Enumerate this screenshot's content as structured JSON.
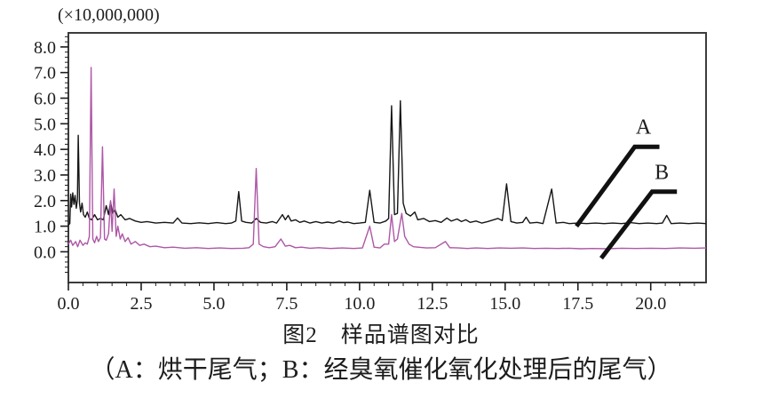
{
  "figure": {
    "caption_line1": "图2　样品谱图对比",
    "caption_line2": "（A：烘干尾气；B：经臭氧催化氧化处理后的尾气）"
  },
  "chart_data": {
    "type": "line",
    "title": "图2 样品谱图对比",
    "subtitle": "（A：烘干尾气；B：经臭氧催化氧化处理后的尾气）",
    "y_scale_label": "(×10,000,000)",
    "xlabel": "",
    "ylabel": "",
    "xlim": [
      0,
      21.9
    ],
    "ylim": [
      -1.2,
      8.55
    ],
    "x_major_ticks": [
      0,
      2.5,
      5,
      7.5,
      10,
      12.5,
      15,
      17.5,
      20
    ],
    "x_tick_labels": [
      "0.0",
      "2.5",
      "5.0",
      "7.5",
      "10.0",
      "12.5",
      "15.0",
      "17.5",
      "20.0"
    ],
    "x_minor_step": 0.5,
    "y_major_ticks": [
      0,
      1,
      2,
      3,
      4,
      5,
      6,
      7,
      8
    ],
    "y_tick_labels": [
      "0.0",
      "1.0",
      "2.0",
      "3.0",
      "4.0",
      "5.0",
      "6.0",
      "7.0",
      "8.0"
    ],
    "y_minor_step": 0.2,
    "grid": false,
    "legend_position": "none",
    "frame_color": "#3c3c3c",
    "series": [
      {
        "name": "A",
        "color": "#161616",
        "baseline": 1.1,
        "points": [
          [
            0.0,
            1.05
          ],
          [
            0.05,
            1.1
          ],
          [
            0.08,
            2.25
          ],
          [
            0.11,
            1.75
          ],
          [
            0.15,
            2.3
          ],
          [
            0.19,
            1.85
          ],
          [
            0.23,
            2.2
          ],
          [
            0.27,
            1.7
          ],
          [
            0.31,
            2.05
          ],
          [
            0.34,
            4.55
          ],
          [
            0.38,
            1.9
          ],
          [
            0.42,
            1.55
          ],
          [
            0.47,
            1.9
          ],
          [
            0.52,
            1.45
          ],
          [
            0.58,
            1.35
          ],
          [
            0.65,
            1.55
          ],
          [
            0.72,
            1.3
          ],
          [
            0.8,
            1.25
          ],
          [
            0.9,
            1.45
          ],
          [
            1.0,
            1.25
          ],
          [
            1.1,
            1.3
          ],
          [
            1.2,
            1.25
          ],
          [
            1.3,
            1.8
          ],
          [
            1.38,
            1.45
          ],
          [
            1.45,
            1.95
          ],
          [
            1.52,
            1.5
          ],
          [
            1.6,
            1.65
          ],
          [
            1.7,
            1.35
          ],
          [
            1.8,
            1.45
          ],
          [
            1.95,
            1.25
          ],
          [
            2.1,
            1.3
          ],
          [
            2.3,
            1.2
          ],
          [
            2.5,
            1.15
          ],
          [
            2.7,
            1.18
          ],
          [
            3.0,
            1.12
          ],
          [
            3.3,
            1.15
          ],
          [
            3.6,
            1.12
          ],
          [
            3.75,
            1.32
          ],
          [
            3.9,
            1.12
          ],
          [
            4.2,
            1.1
          ],
          [
            4.5,
            1.13
          ],
          [
            4.8,
            1.1
          ],
          [
            5.1,
            1.14
          ],
          [
            5.4,
            1.1
          ],
          [
            5.6,
            1.12
          ],
          [
            5.75,
            1.2
          ],
          [
            5.85,
            2.35
          ],
          [
            5.95,
            1.2
          ],
          [
            6.1,
            1.15
          ],
          [
            6.3,
            1.12
          ],
          [
            6.45,
            1.3
          ],
          [
            6.6,
            1.15
          ],
          [
            6.8,
            1.12
          ],
          [
            7.0,
            1.18
          ],
          [
            7.15,
            1.12
          ],
          [
            7.35,
            1.45
          ],
          [
            7.45,
            1.25
          ],
          [
            7.55,
            1.42
          ],
          [
            7.65,
            1.2
          ],
          [
            7.8,
            1.25
          ],
          [
            7.95,
            1.15
          ],
          [
            8.1,
            1.2
          ],
          [
            8.3,
            1.12
          ],
          [
            8.5,
            1.18
          ],
          [
            8.7,
            1.12
          ],
          [
            8.9,
            1.16
          ],
          [
            9.1,
            1.12
          ],
          [
            9.3,
            1.2
          ],
          [
            9.45,
            1.14
          ],
          [
            9.6,
            1.16
          ],
          [
            9.8,
            1.1
          ],
          [
            10.0,
            1.12
          ],
          [
            10.2,
            1.15
          ],
          [
            10.35,
            2.4
          ],
          [
            10.5,
            1.15
          ],
          [
            10.7,
            1.12
          ],
          [
            10.9,
            1.2
          ],
          [
            11.0,
            1.3
          ],
          [
            11.1,
            5.7
          ],
          [
            11.2,
            1.45
          ],
          [
            11.3,
            1.5
          ],
          [
            11.4,
            5.9
          ],
          [
            11.5,
            1.9
          ],
          [
            11.6,
            1.5
          ],
          [
            11.75,
            1.4
          ],
          [
            11.9,
            1.55
          ],
          [
            12.0,
            1.25
          ],
          [
            12.2,
            1.3
          ],
          [
            12.4,
            1.18
          ],
          [
            12.6,
            1.22
          ],
          [
            12.8,
            1.15
          ],
          [
            13.0,
            1.32
          ],
          [
            13.15,
            1.2
          ],
          [
            13.35,
            1.28
          ],
          [
            13.5,
            1.18
          ],
          [
            13.65,
            1.25
          ],
          [
            13.8,
            1.15
          ],
          [
            14.0,
            1.2
          ],
          [
            14.2,
            1.12
          ],
          [
            14.4,
            1.18
          ],
          [
            14.6,
            1.25
          ],
          [
            14.75,
            1.3
          ],
          [
            14.9,
            1.22
          ],
          [
            15.05,
            2.65
          ],
          [
            15.2,
            1.18
          ],
          [
            15.4,
            1.12
          ],
          [
            15.6,
            1.15
          ],
          [
            15.72,
            1.35
          ],
          [
            15.85,
            1.12
          ],
          [
            16.1,
            1.15
          ],
          [
            16.3,
            1.1
          ],
          [
            16.6,
            2.45
          ],
          [
            16.75,
            1.12
          ],
          [
            17.0,
            1.15
          ],
          [
            17.2,
            1.1
          ],
          [
            17.5,
            1.12
          ],
          [
            17.8,
            1.1
          ],
          [
            18.1,
            1.12
          ],
          [
            18.4,
            1.1
          ],
          [
            18.7,
            1.12
          ],
          [
            19.0,
            1.1
          ],
          [
            19.3,
            1.14
          ],
          [
            19.6,
            1.1
          ],
          [
            19.9,
            1.12
          ],
          [
            20.2,
            1.1
          ],
          [
            20.4,
            1.12
          ],
          [
            20.55,
            1.42
          ],
          [
            20.7,
            1.1
          ],
          [
            21.0,
            1.12
          ],
          [
            21.3,
            1.1
          ],
          [
            21.6,
            1.12
          ],
          [
            21.9,
            1.1
          ]
        ]
      },
      {
        "name": "B",
        "color": "#ae57a6",
        "baseline": 0.13,
        "points": [
          [
            0.0,
            0.3
          ],
          [
            0.08,
            0.45
          ],
          [
            0.15,
            0.25
          ],
          [
            0.25,
            0.4
          ],
          [
            0.32,
            0.2
          ],
          [
            0.4,
            0.45
          ],
          [
            0.5,
            0.25
          ],
          [
            0.58,
            0.35
          ],
          [
            0.65,
            0.3
          ],
          [
            0.72,
            0.6
          ],
          [
            0.78,
            7.2
          ],
          [
            0.84,
            0.5
          ],
          [
            0.9,
            0.35
          ],
          [
            0.97,
            0.6
          ],
          [
            1.03,
            0.4
          ],
          [
            1.1,
            0.55
          ],
          [
            1.17,
            4.1
          ],
          [
            1.24,
            0.5
          ],
          [
            1.3,
            0.45
          ],
          [
            1.38,
            0.7
          ],
          [
            1.45,
            2.0
          ],
          [
            1.5,
            0.8
          ],
          [
            1.57,
            2.45
          ],
          [
            1.64,
            0.6
          ],
          [
            1.7,
            1.0
          ],
          [
            1.78,
            0.5
          ],
          [
            1.85,
            0.7
          ],
          [
            1.95,
            0.4
          ],
          [
            2.05,
            0.55
          ],
          [
            2.15,
            0.3
          ],
          [
            2.3,
            0.4
          ],
          [
            2.45,
            0.25
          ],
          [
            2.6,
            0.3
          ],
          [
            2.8,
            0.2
          ],
          [
            3.0,
            0.22
          ],
          [
            3.3,
            0.16
          ],
          [
            3.6,
            0.18
          ],
          [
            4.0,
            0.14
          ],
          [
            4.4,
            0.16
          ],
          [
            4.8,
            0.13
          ],
          [
            5.2,
            0.15
          ],
          [
            5.6,
            0.13
          ],
          [
            6.0,
            0.14
          ],
          [
            6.2,
            0.16
          ],
          [
            6.35,
            0.3
          ],
          [
            6.45,
            3.25
          ],
          [
            6.55,
            0.3
          ],
          [
            6.7,
            0.2
          ],
          [
            6.9,
            0.16
          ],
          [
            7.1,
            0.2
          ],
          [
            7.3,
            0.5
          ],
          [
            7.45,
            0.22
          ],
          [
            7.6,
            0.25
          ],
          [
            7.8,
            0.16
          ],
          [
            8.0,
            0.18
          ],
          [
            8.3,
            0.14
          ],
          [
            8.6,
            0.16
          ],
          [
            9.0,
            0.13
          ],
          [
            9.4,
            0.15
          ],
          [
            9.8,
            0.13
          ],
          [
            10.1,
            0.15
          ],
          [
            10.35,
            1.0
          ],
          [
            10.5,
            0.18
          ],
          [
            10.7,
            0.15
          ],
          [
            10.85,
            0.3
          ],
          [
            11.0,
            0.3
          ],
          [
            11.1,
            1.45
          ],
          [
            11.2,
            0.4
          ],
          [
            11.3,
            0.5
          ],
          [
            11.45,
            1.5
          ],
          [
            11.55,
            0.6
          ],
          [
            11.7,
            0.3
          ],
          [
            11.85,
            0.2
          ],
          [
            12.0,
            0.18
          ],
          [
            12.3,
            0.15
          ],
          [
            12.6,
            0.16
          ],
          [
            12.95,
            0.4
          ],
          [
            13.1,
            0.16
          ],
          [
            13.4,
            0.15
          ],
          [
            13.7,
            0.13
          ],
          [
            14.0,
            0.15
          ],
          [
            14.4,
            0.13
          ],
          [
            14.8,
            0.15
          ],
          [
            15.2,
            0.14
          ],
          [
            15.6,
            0.15
          ],
          [
            16.0,
            0.13
          ],
          [
            16.4,
            0.14
          ],
          [
            16.8,
            0.13
          ],
          [
            17.2,
            0.14
          ],
          [
            17.6,
            0.12
          ],
          [
            18.0,
            0.13
          ],
          [
            18.5,
            0.12
          ],
          [
            19.0,
            0.14
          ],
          [
            19.5,
            0.13
          ],
          [
            20.0,
            0.14
          ],
          [
            20.5,
            0.13
          ],
          [
            21.0,
            0.15
          ],
          [
            21.5,
            0.14
          ],
          [
            21.9,
            0.15
          ]
        ]
      }
    ],
    "annotations": [
      {
        "label": "A",
        "color": "#111111",
        "line": [
          [
            17.45,
            1.0
          ],
          [
            19.45,
            4.1
          ],
          [
            20.3,
            4.1
          ]
        ],
        "label_pos": [
          19.75,
          4.62
        ]
      },
      {
        "label": "B",
        "color": "#111111",
        "line": [
          [
            18.3,
            -0.25
          ],
          [
            20.05,
            2.35
          ],
          [
            20.9,
            2.35
          ]
        ],
        "label_pos": [
          20.38,
          2.85
        ]
      }
    ]
  }
}
